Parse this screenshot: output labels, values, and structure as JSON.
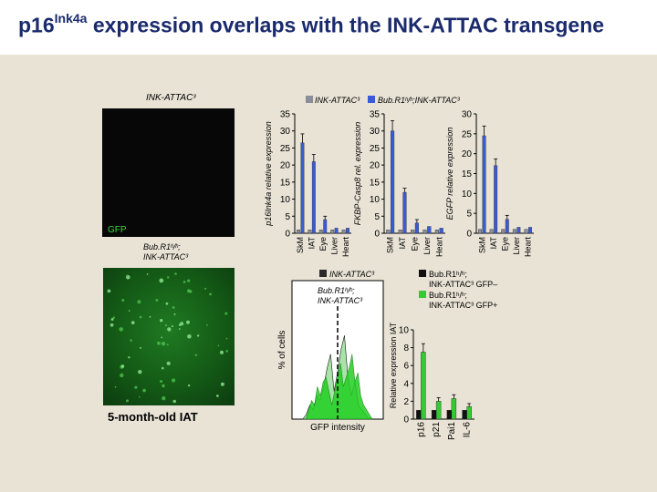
{
  "title": {
    "main": "p16",
    "sup": "Ink4a",
    "rest": " expression overlaps with the INK-ATTAC transgene"
  },
  "images": {
    "top_label": "INK-ATTAC³",
    "gfp_label": "GFP",
    "bottom_label": "Bub.R1ʰ/ʰ; INK-ATTAC³",
    "bottom_caption": "5-month-old IAT"
  },
  "legend_top": {
    "entries": [
      "INK-ATTAC³",
      "Bub.R1ʰ/ʰ;INK-ATTAC³"
    ]
  },
  "legend_bottom": {
    "entries": [
      "INK-ATTAC³",
      "Bub.R1ʰ/ʰ; INK-ATTAC³"
    ]
  },
  "chart_data": [
    {
      "type": "bar",
      "ylabel": "p16Ink4a relative expression",
      "categories": [
        "SkM",
        "IAT",
        "Eye",
        "Liver",
        "Heart"
      ],
      "ylim": [
        0,
        35
      ],
      "yticks": [
        0,
        5,
        10,
        15,
        20,
        25,
        30,
        35
      ],
      "series": [
        {
          "name": "INK-ATTAC³",
          "values": [
            1,
            1,
            1,
            1,
            1
          ]
        },
        {
          "name": "Bub.R1ʰ/ʰ;INK-ATTAC³",
          "values": [
            26.5,
            21,
            4,
            1.5,
            1.5
          ]
        }
      ]
    },
    {
      "type": "bar",
      "ylabel": "FKBP-Casp8 rel. expression",
      "categories": [
        "SkM",
        "IAT",
        "Eye",
        "Liver",
        "Heart"
      ],
      "ylim": [
        0,
        35
      ],
      "yticks": [
        0,
        5,
        10,
        15,
        20,
        25,
        30,
        35
      ],
      "series": [
        {
          "name": "INK-ATTAC³",
          "values": [
            1,
            1,
            1,
            1,
            1
          ]
        },
        {
          "name": "Bub.R1ʰ/ʰ;INK-ATTAC³",
          "values": [
            30,
            12,
            3,
            2,
            1.5
          ]
        }
      ]
    },
    {
      "type": "bar",
      "ylabel": "EGFP relative expression",
      "categories": [
        "SkM",
        "IAT",
        "Eye",
        "Liver",
        "Heart"
      ],
      "ylim": [
        0,
        30
      ],
      "yticks": [
        0,
        5,
        10,
        15,
        20,
        25,
        30
      ],
      "series": [
        {
          "name": "INK-ATTAC³",
          "values": [
            1,
            1,
            1,
            1,
            1
          ]
        },
        {
          "name": "Bub.R1ʰ/ʰ;INK-ATTAC³",
          "values": [
            24.5,
            17,
            3.5,
            1.5,
            1.5
          ]
        }
      ]
    },
    {
      "type": "area",
      "xlabel": "GFP intensity",
      "ylabel": "% of cells",
      "series": [
        {
          "name": "INK-ATTAC³",
          "values": [
            0,
            0,
            1,
            3,
            2,
            5,
            4,
            7,
            11,
            14,
            6,
            10,
            15,
            18,
            9,
            5,
            8,
            3,
            2,
            1,
            0,
            0
          ]
        },
        {
          "name": "Bub.R1ʰ/ʰ; INK-ATTAC³",
          "values": [
            0,
            0,
            2,
            4,
            3,
            7,
            5,
            8,
            9,
            6,
            3,
            6,
            9,
            12,
            7,
            9,
            11,
            14,
            8,
            10,
            5,
            3,
            2,
            1,
            0
          ]
        }
      ]
    },
    {
      "type": "bar",
      "ylabel": "Relative expression IAT",
      "categories": [
        "p16",
        "p21",
        "Pai1",
        "IL-6"
      ],
      "ylim": [
        0,
        10
      ],
      "yticks": [
        0,
        2,
        4,
        6,
        8,
        10
      ],
      "legend": [
        "Bub.R1ʰ/ʰ; INK-ATTAC³ GFP–",
        "Bub.R1ʰ/ʰ; INK-ATTAC³ GFP+"
      ],
      "series": [
        {
          "name": "Bub.R1ʰ/ʰ; INK-ATTAC³ GFP–",
          "values": [
            1,
            1,
            1,
            1
          ]
        },
        {
          "name": "Bub.R1ʰ/ʰ; INK-ATTAC³ GFP+",
          "values": [
            7.5,
            2,
            2.3,
            1.4
          ]
        }
      ]
    }
  ]
}
